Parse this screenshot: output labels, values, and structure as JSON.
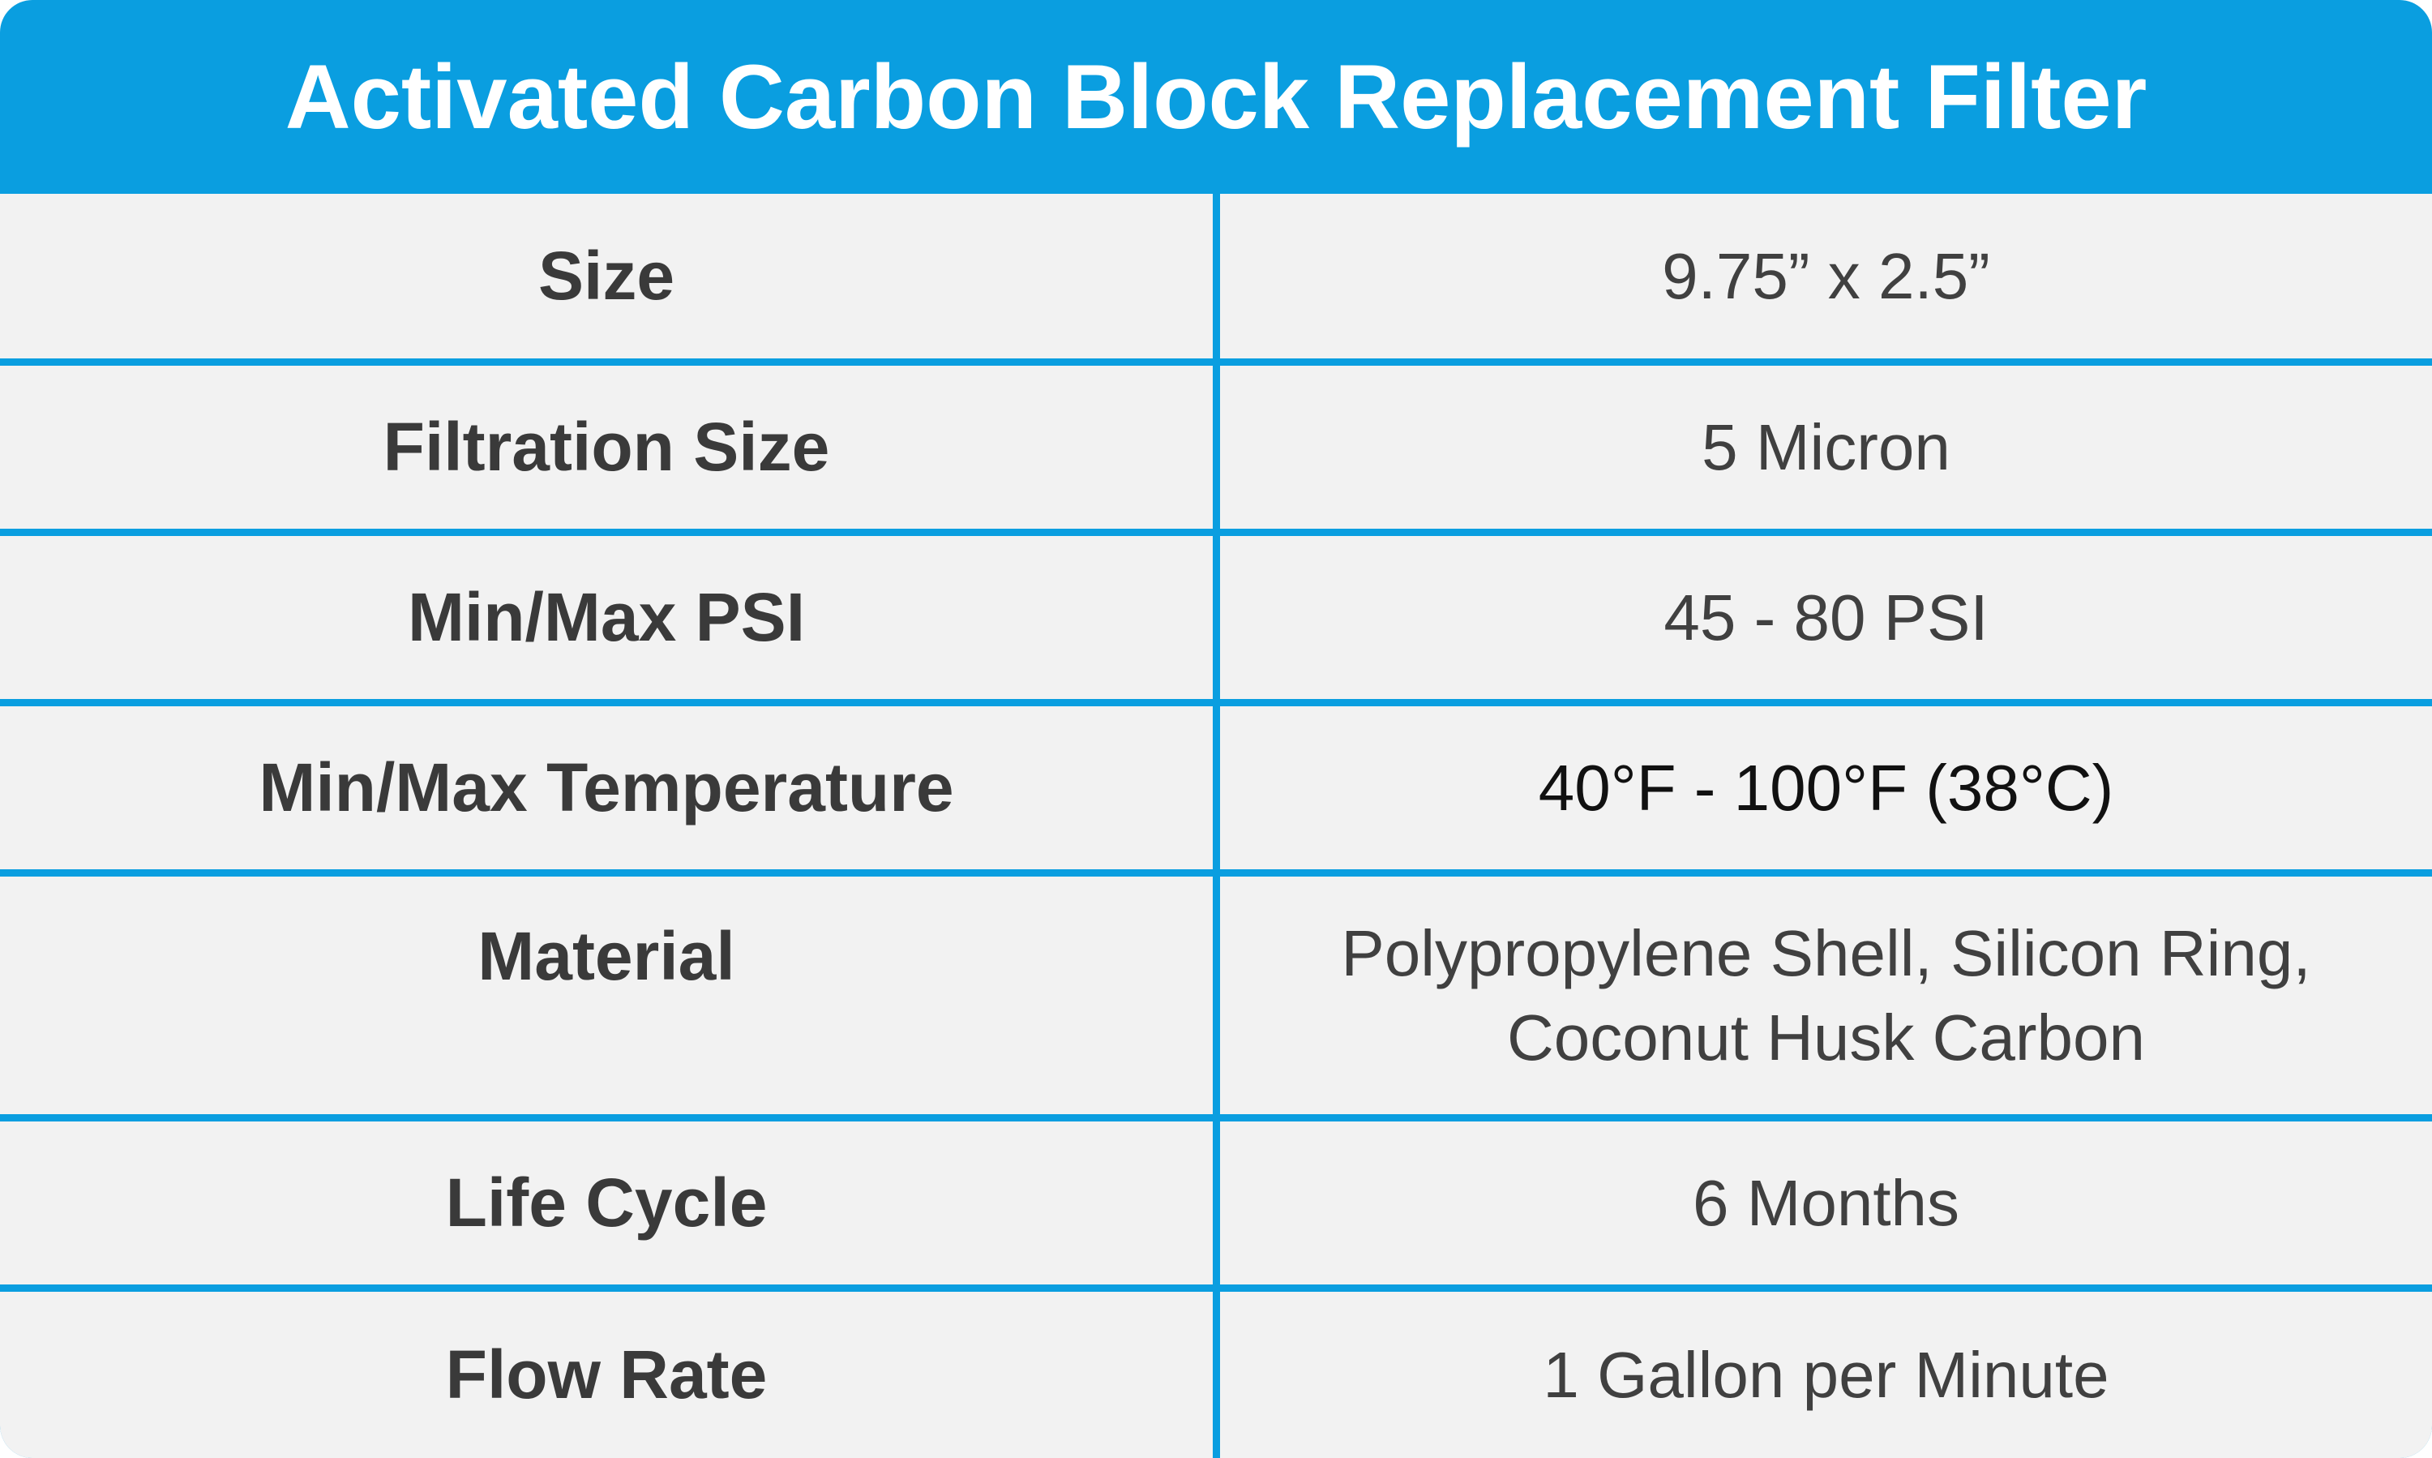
{
  "header": {
    "title": "Activated Carbon Block Replacement Filter"
  },
  "table": {
    "rows": [
      [
        "Size",
        "9.75” x 2.5”"
      ],
      [
        "Filtration Size",
        "5 Micron"
      ],
      [
        "Min/Max PSI",
        "45 - 80 PSI"
      ],
      [
        "Min/Max Temperature",
        "40°F - 100°F (38°C)"
      ],
      [
        "Material",
        "Polypropylene Shell, Silicon Ring, Coconut Husk Carbon"
      ],
      [
        "Life Cycle",
        "6 Months"
      ],
      [
        "Flow Rate",
        "1 Gallon per Minute"
      ]
    ]
  }
}
